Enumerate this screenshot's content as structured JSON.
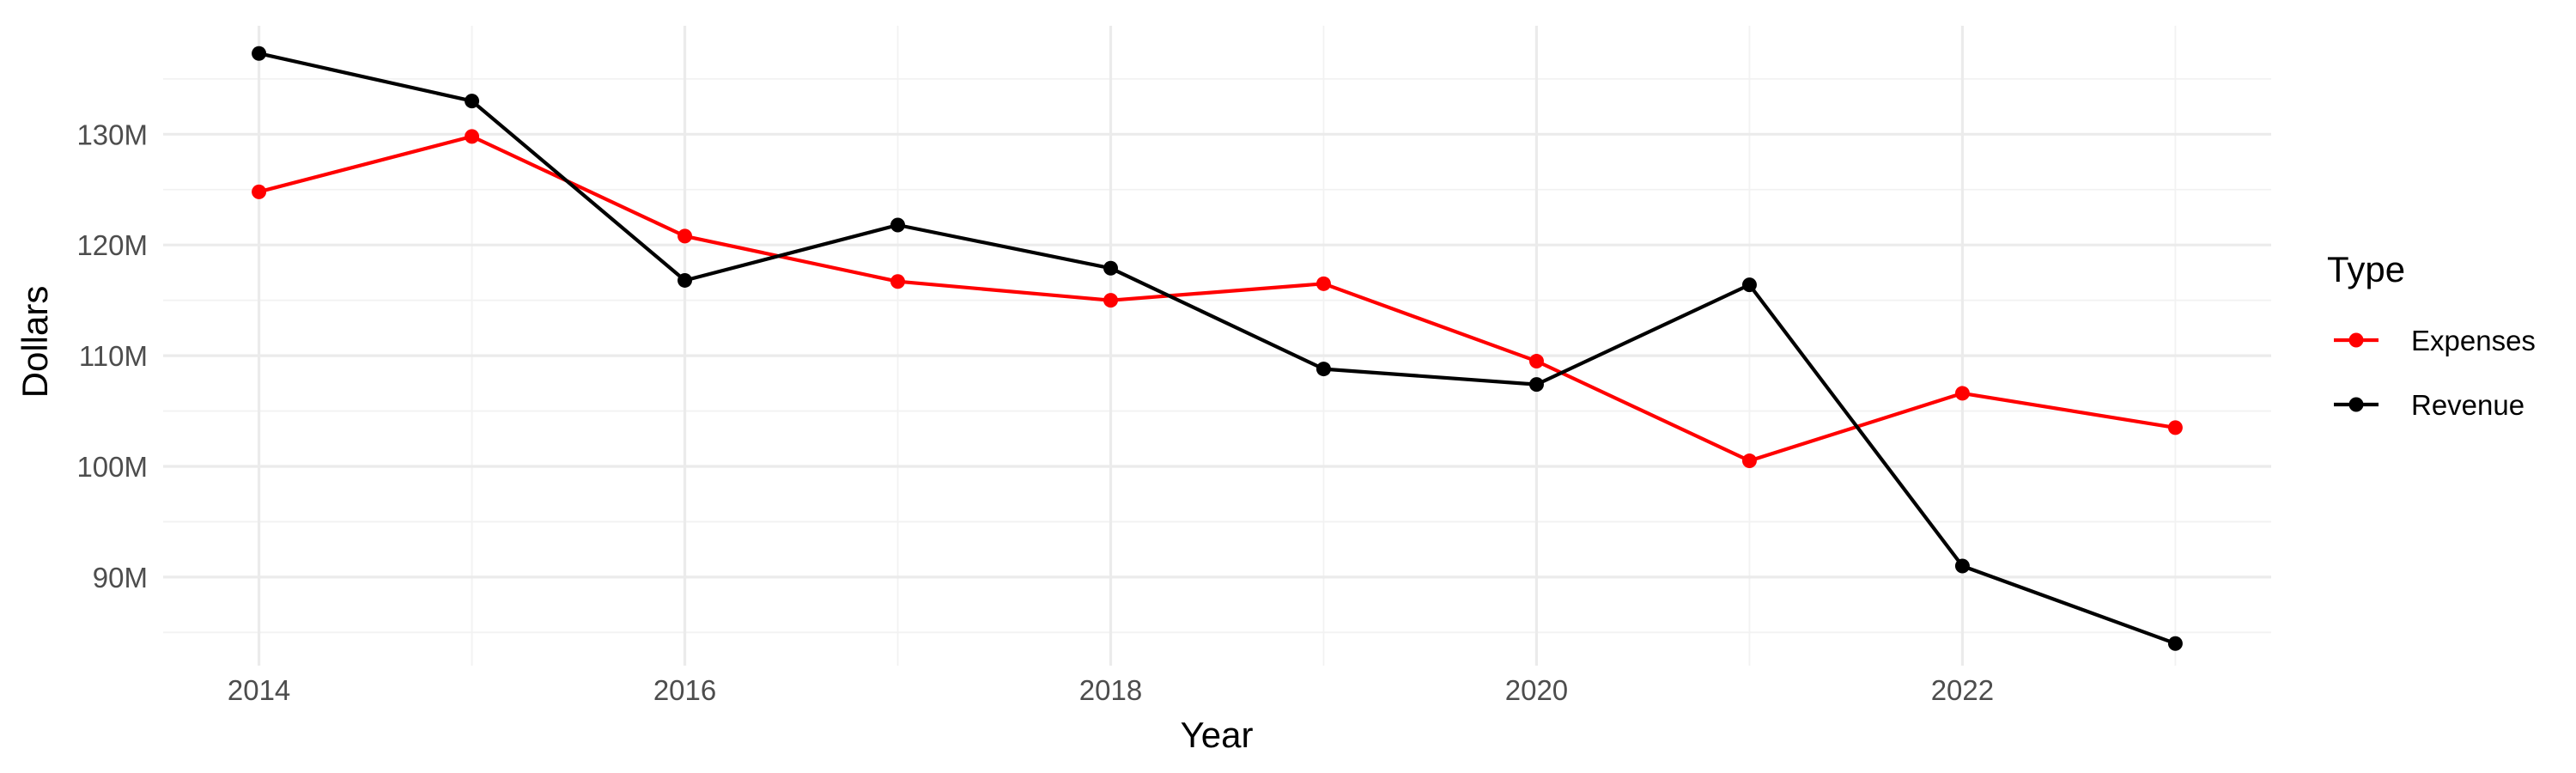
{
  "chart_data": {
    "type": "line",
    "title": "",
    "xlabel": "Year",
    "ylabel": "Dollars",
    "x": [
      2014,
      2015,
      2016,
      2017,
      2018,
      2019,
      2020,
      2021,
      2022,
      2023
    ],
    "x_ticks": [
      2014,
      2016,
      2018,
      2020,
      2022
    ],
    "x_tick_labels": [
      "2014",
      "2016",
      "2018",
      "2020",
      "2022"
    ],
    "y_ticks": [
      90,
      100,
      110,
      120,
      130
    ],
    "y_tick_labels": [
      "90M",
      "100M",
      "110M",
      "120M",
      "130M"
    ],
    "y_unit": "millions of dollars",
    "xlim": [
      2013.55,
      2023.45
    ],
    "ylim": [
      82.0,
      139.8
    ],
    "grid": true,
    "legend": {
      "title": "Type",
      "position": "right"
    },
    "series": [
      {
        "name": "Expenses",
        "color": "#ff0000",
        "values": [
          124.8,
          129.8,
          120.8,
          116.7,
          115.0,
          116.5,
          109.5,
          100.5,
          106.6,
          103.5
        ]
      },
      {
        "name": "Revenue",
        "color": "#000000",
        "values": [
          137.3,
          133.0,
          116.8,
          121.8,
          117.9,
          108.8,
          107.4,
          116.4,
          91.0,
          84.0
        ]
      }
    ]
  }
}
